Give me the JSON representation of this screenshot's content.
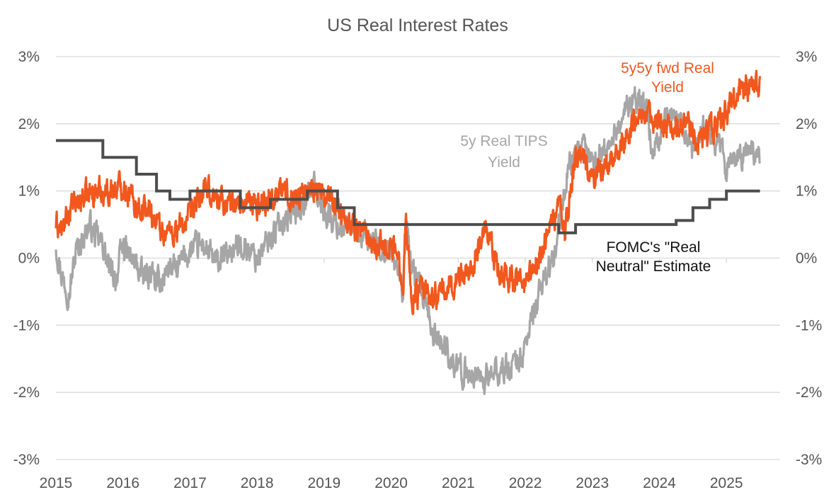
{
  "chart_data": {
    "type": "line",
    "title": "US Real Interest Rates",
    "x_range": [
      2015.0,
      2025.8
    ],
    "ylim": [
      -3,
      3
    ],
    "grid": true,
    "y_ticks": [
      3,
      2,
      1,
      0,
      -1,
      -2,
      -3
    ],
    "y_tick_labels": [
      "3%",
      "2%",
      "1%",
      "0%",
      "-1%",
      "-2%",
      "-3%"
    ],
    "x_ticks": [
      2015,
      2016,
      2017,
      2018,
      2019,
      2020,
      2021,
      2022,
      2023,
      2024,
      2025
    ],
    "x_tick_labels": [
      "2015",
      "2016",
      "2017",
      "2018",
      "2019",
      "2020",
      "2021",
      "2022",
      "2023",
      "2024",
      "2025"
    ],
    "colors": {
      "fwd": "#f2581e",
      "tips": "#a6a6a6",
      "fomc": "#4d4d4d",
      "grid": "#d9d9d9",
      "axis_text": "#555555"
    },
    "annotations": [
      {
        "series": "fwd",
        "lines": [
          "5y5y fwd Real",
          "Yield"
        ]
      },
      {
        "series": "tips",
        "lines": [
          "5y Real TIPS",
          "Yield"
        ]
      },
      {
        "series": "fomc",
        "lines": [
          "FOMC's \"Real",
          "Neutral\" Estimate"
        ]
      }
    ],
    "series": [
      {
        "id": "tips",
        "style": "noisy-line",
        "x": [
          2015.0,
          2015.1,
          2015.2,
          2015.3,
          2015.4,
          2015.5,
          2015.6,
          2015.7,
          2015.8,
          2015.9,
          2016.0,
          2016.1,
          2016.2,
          2016.3,
          2016.4,
          2016.5,
          2016.6,
          2016.7,
          2016.8,
          2016.9,
          2017.0,
          2017.2,
          2017.4,
          2017.6,
          2017.8,
          2018.0,
          2018.2,
          2018.4,
          2018.6,
          2018.85,
          2019.0,
          2019.2,
          2019.4,
          2019.6,
          2019.8,
          2020.0,
          2020.1,
          2020.18,
          2020.22,
          2020.3,
          2020.5,
          2020.6,
          2020.8,
          2021.0,
          2021.2,
          2021.4,
          2021.6,
          2021.8,
          2021.95,
          2022.1,
          2022.2,
          2022.3,
          2022.45,
          2022.55,
          2022.65,
          2022.75,
          2022.9,
          2023.0,
          2023.2,
          2023.4,
          2023.6,
          2023.8,
          2023.9,
          2024.0,
          2024.1,
          2024.3,
          2024.5,
          2024.7,
          2024.9,
          2025.0,
          2025.2,
          2025.4,
          2025.5
        ],
        "y": [
          0.2,
          -0.3,
          -0.5,
          0.1,
          0.3,
          0.5,
          0.3,
          0.2,
          -0.2,
          -0.3,
          0.2,
          0.0,
          -0.1,
          -0.3,
          -0.2,
          -0.4,
          -0.3,
          -0.1,
          -0.2,
          0.0,
          0.1,
          0.2,
          -0.1,
          0.1,
          0.2,
          0.0,
          0.3,
          0.6,
          0.7,
          1.1,
          0.7,
          0.5,
          0.4,
          0.3,
          0.2,
          0.1,
          -0.2,
          -0.5,
          0.6,
          -0.1,
          -0.7,
          -1.1,
          -1.3,
          -1.7,
          -1.7,
          -1.8,
          -1.7,
          -1.6,
          -1.5,
          -0.9,
          -0.6,
          -0.2,
          0.0,
          0.8,
          1.4,
          1.5,
          1.6,
          1.4,
          1.6,
          2.0,
          2.4,
          2.2,
          1.6,
          1.8,
          2.1,
          2.0,
          1.5,
          2.0,
          1.7,
          1.3,
          1.5,
          1.6,
          1.5
        ]
      },
      {
        "id": "fwd",
        "style": "noisy-line",
        "x": [
          2015.0,
          2015.1,
          2015.2,
          2015.4,
          2015.6,
          2015.8,
          2016.0,
          2016.2,
          2016.4,
          2016.6,
          2016.8,
          2017.0,
          2017.2,
          2017.4,
          2017.6,
          2017.8,
          2018.0,
          2018.2,
          2018.4,
          2018.6,
          2018.85,
          2019.0,
          2019.2,
          2019.4,
          2019.6,
          2019.8,
          2020.0,
          2020.1,
          2020.18,
          2020.22,
          2020.3,
          2020.45,
          2020.6,
          2020.8,
          2021.0,
          2021.2,
          2021.4,
          2021.6,
          2021.8,
          2022.0,
          2022.1,
          2022.2,
          2022.35,
          2022.5,
          2022.6,
          2022.7,
          2022.8,
          2023.0,
          2023.2,
          2023.4,
          2023.6,
          2023.8,
          2023.9,
          2024.0,
          2024.2,
          2024.4,
          2024.6,
          2024.8,
          2025.0,
          2025.2,
          2025.4,
          2025.5
        ],
        "y": [
          0.5,
          0.4,
          0.7,
          0.9,
          1.0,
          1.0,
          1.1,
          0.8,
          0.7,
          0.4,
          0.4,
          0.6,
          1.0,
          0.9,
          0.8,
          0.8,
          0.8,
          0.9,
          1.0,
          0.9,
          1.1,
          0.9,
          0.8,
          0.5,
          0.4,
          0.2,
          0.2,
          0.0,
          -0.3,
          0.6,
          -0.6,
          -0.5,
          -0.6,
          -0.5,
          -0.3,
          -0.1,
          0.4,
          -0.2,
          -0.3,
          -0.4,
          -0.2,
          0.0,
          0.4,
          0.8,
          0.4,
          1.2,
          1.6,
          1.2,
          1.4,
          1.6,
          2.0,
          2.3,
          1.9,
          2.0,
          2.0,
          2.1,
          1.7,
          1.9,
          2.2,
          2.5,
          2.6,
          2.5
        ]
      },
      {
        "id": "fomc",
        "style": "step",
        "x": [
          2015.0,
          2015.7,
          2016.2,
          2016.5,
          2016.7,
          2017.0,
          2017.5,
          2017.75,
          2018.2,
          2018.75,
          2019.2,
          2019.45,
          2020.0,
          2021.0,
          2022.0,
          2022.5,
          2022.75,
          2023.0,
          2024.0,
          2024.25,
          2024.5,
          2024.75,
          2025.0,
          2025.5
        ],
        "y": [
          1.75,
          1.5,
          1.25,
          1.0,
          0.875,
          1.0,
          1.0,
          0.75,
          0.875,
          1.0,
          0.75,
          0.5,
          0.5,
          0.5,
          0.5,
          0.375,
          0.5,
          0.5,
          0.5,
          0.56,
          0.75,
          0.875,
          1.0,
          1.0
        ]
      }
    ]
  }
}
